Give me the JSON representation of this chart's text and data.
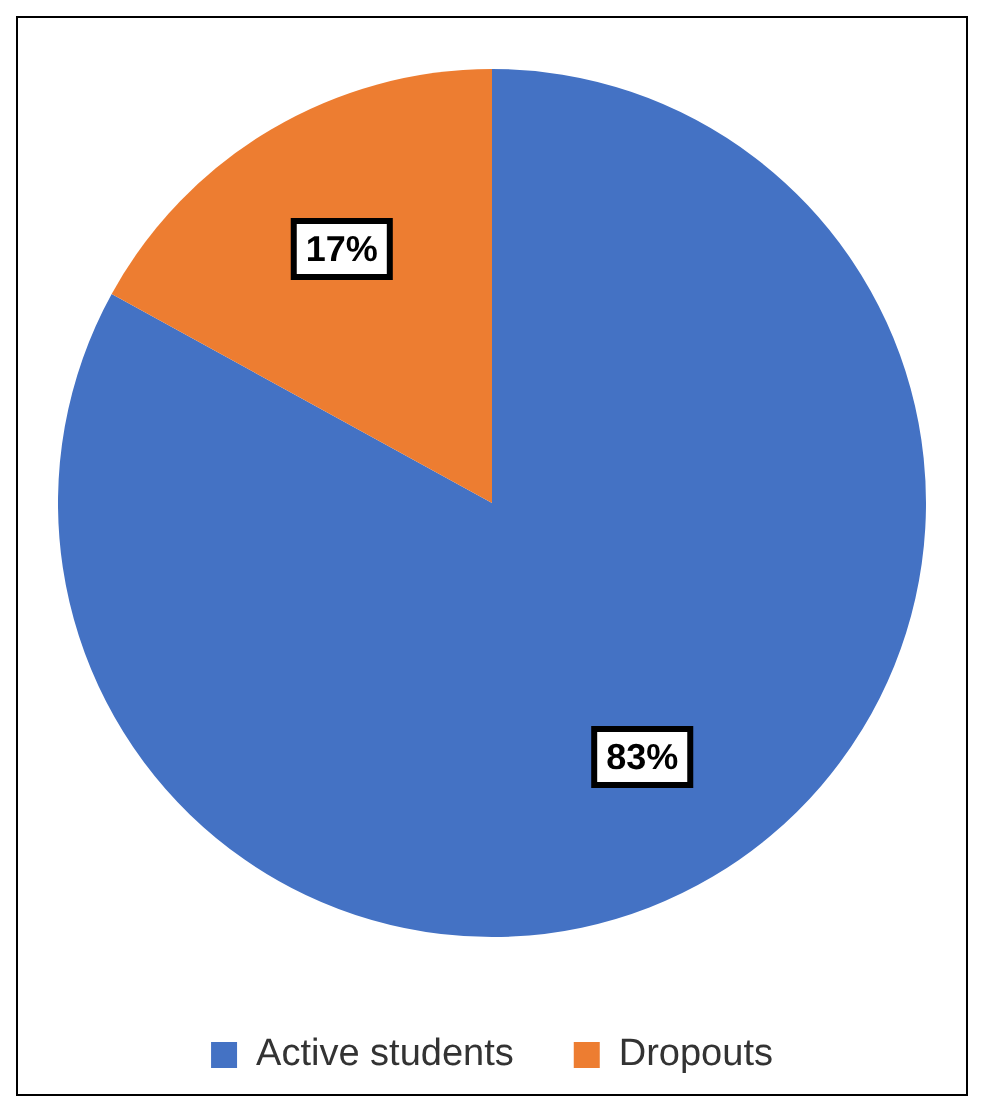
{
  "chart_data": {
    "type": "pie",
    "categories": [
      "Active students",
      "Dropouts"
    ],
    "values": [
      83,
      17
    ],
    "colors": [
      "#4472c4",
      "#ed7d31"
    ],
    "value_labels": [
      "83%",
      "17%"
    ],
    "legend": "bottom"
  }
}
